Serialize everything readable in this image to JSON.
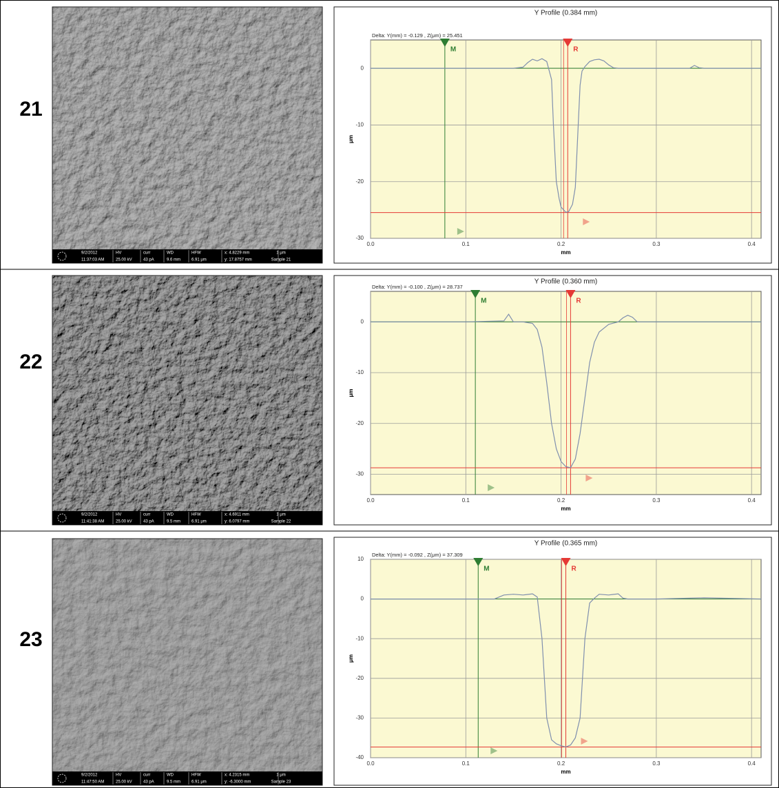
{
  "panels": [
    {
      "label": "21",
      "sem_info": {
        "date": "9/2/2012",
        "time": "11:37:03 AM",
        "hv_label": "HV",
        "hv": "25.00 kV",
        "curr_label": "curr",
        "curr": "43 pA",
        "wd_label": "WD",
        "wd": "9.6 mm",
        "hfw_label": "HFW",
        "hfw": "6.91 μm",
        "x": "x: 4.8229 mm",
        "y": "y: 17.8757 mm",
        "scale": "1 μm",
        "sample": "Sample 21"
      }
    },
    {
      "label": "22",
      "sem_info": {
        "date": "9/2/2012",
        "time": "11:41:38 AM",
        "hv_label": "HV",
        "hv": "25.00 kV",
        "curr_label": "curr",
        "curr": "43 pA",
        "wd_label": "WD",
        "wd": "9.5 mm",
        "hfw_label": "HFW",
        "hfw": "6.91 μm",
        "x": "x: 4.6911 mm",
        "y": "y: 6.0797 mm",
        "scale": "1 μm",
        "sample": "Sample 22"
      }
    },
    {
      "label": "23",
      "sem_info": {
        "date": "9/2/2012",
        "time": "11:47:50 AM",
        "hv_label": "HV",
        "hv": "25.00 kV",
        "curr_label": "curr",
        "curr": "43 pA",
        "wd_label": "WD",
        "wd": "9.5 mm",
        "hfw_label": "HFW",
        "hfw": "6.91 μm",
        "x": "x: 4.2315 mm",
        "y": "y: -6.3000 mm",
        "scale": "1 μm",
        "sample": "Sample 23"
      }
    }
  ],
  "chart_data": [
    {
      "type": "line",
      "title": "Y Profile (0.384 mm)",
      "annotation": "Delta:  Y(mm) = -0.129 ,  Z(μm) = 25.451",
      "xlabel": "mm",
      "ylabel": "μm",
      "xlim": [
        0,
        0.41
      ],
      "ylim": [
        -30,
        5
      ],
      "xticks": [
        {
          "value": 0,
          "label": "0.0"
        },
        0.1,
        0.2,
        0.3,
        0.4
      ],
      "yticks": [
        0,
        -10,
        -20,
        -30
      ],
      "grid": true,
      "color": "#7f8fae",
      "x": [
        0,
        0.05,
        0.1,
        0.15,
        0.16,
        0.165,
        0.17,
        0.175,
        0.18,
        0.185,
        0.19,
        0.192,
        0.195,
        0.198,
        0.2,
        0.205,
        0.208,
        0.212,
        0.215,
        0.218,
        0.22,
        0.222,
        0.225,
        0.23,
        0.235,
        0.24,
        0.245,
        0.25,
        0.255,
        0.26,
        0.3,
        0.335,
        0.34,
        0.345,
        0.35,
        0.41
      ],
      "values": [
        0,
        0,
        0,
        0,
        0.2,
        1,
        1.6,
        1.3,
        1.7,
        1.2,
        -2,
        -10,
        -20,
        -23,
        -24.5,
        -25.4,
        -25.3,
        -24,
        -21,
        -10,
        -3,
        -0.5,
        0.3,
        1.2,
        1.5,
        1.6,
        1.3,
        0.6,
        0.1,
        0,
        0,
        0,
        0.5,
        0.1,
        0,
        0
      ],
      "cursors": [
        {
          "label": "M",
          "x": 0.078,
          "z": 0,
          "color": "#2e7d32"
        },
        {
          "label": "R",
          "x": 0.207,
          "z": -25.451,
          "color": "#e53935"
        }
      ]
    },
    {
      "type": "line",
      "title": "Y Profile (0.360 mm)",
      "annotation": "Delta:  Y(mm) = -0.100 ,  Z(μm) = 28.737",
      "xlabel": "mm",
      "ylabel": "μm",
      "xlim": [
        0,
        0.41
      ],
      "ylim": [
        -34,
        6
      ],
      "xticks": [
        {
          "value": 0,
          "label": "0.0"
        },
        0.1,
        0.2,
        0.3,
        0.4
      ],
      "yticks": [
        0,
        -10,
        -20,
        -30
      ],
      "grid": true,
      "color": "#7f8fae",
      "x": [
        0,
        0.1,
        0.14,
        0.145,
        0.15,
        0.16,
        0.17,
        0.175,
        0.18,
        0.185,
        0.19,
        0.195,
        0.2,
        0.205,
        0.21,
        0.215,
        0.22,
        0.225,
        0.23,
        0.235,
        0.24,
        0.25,
        0.26,
        0.265,
        0.27,
        0.275,
        0.28,
        0.41
      ],
      "values": [
        0,
        0,
        0.2,
        1.5,
        0,
        0,
        -0.3,
        -1.5,
        -5,
        -12,
        -20,
        -25,
        -27.5,
        -28.5,
        -28.7,
        -27,
        -22,
        -15,
        -8,
        -4,
        -2,
        -0.5,
        0,
        0.8,
        1.3,
        0.9,
        0,
        0
      ],
      "cursors": [
        {
          "label": "M",
          "x": 0.11,
          "z": 0,
          "color": "#2e7d32"
        },
        {
          "label": "R",
          "x": 0.21,
          "z": -28.737,
          "color": "#e53935"
        }
      ]
    },
    {
      "type": "line",
      "title": "Y Profile (0.365 mm)",
      "annotation": "Delta:  Y(mm) = -0.092 ,  Z(μm) = 37.309",
      "xlabel": "mm",
      "ylabel": "μm",
      "xlim": [
        0,
        0.41
      ],
      "ylim": [
        -40,
        10
      ],
      "xticks": [
        {
          "value": 0,
          "label": "0.0"
        },
        0.1,
        0.2,
        0.3,
        0.4
      ],
      "yticks": [
        10,
        0,
        -10,
        -20,
        -30,
        -40
      ],
      "grid": true,
      "color": "#7f8fae",
      "x": [
        0,
        0.1,
        0.13,
        0.14,
        0.15,
        0.16,
        0.17,
        0.175,
        0.18,
        0.185,
        0.19,
        0.195,
        0.2,
        0.205,
        0.21,
        0.215,
        0.22,
        0.225,
        0.23,
        0.235,
        0.24,
        0.25,
        0.26,
        0.265,
        0.27,
        0.3,
        0.35,
        0.41
      ],
      "values": [
        0,
        0,
        0,
        1,
        1.2,
        1,
        1.3,
        0.5,
        -10,
        -30,
        -35.5,
        -36.5,
        -37,
        -37.3,
        -36.8,
        -35,
        -30,
        -10,
        -1,
        0.2,
        1.2,
        1,
        1.3,
        0.2,
        0,
        0,
        0.3,
        0
      ],
      "cursors": [
        {
          "label": "M",
          "x": 0.113,
          "z": 0,
          "color": "#2e7d32"
        },
        {
          "label": "R",
          "x": 0.205,
          "z": -37.309,
          "color": "#e53935"
        }
      ]
    }
  ]
}
